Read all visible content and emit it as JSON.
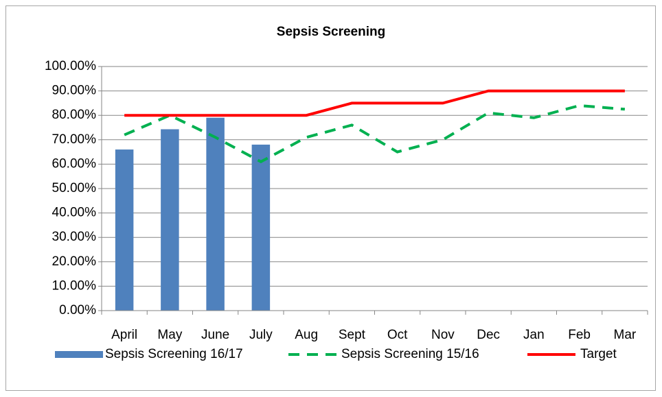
{
  "chart_data": {
    "type": "bar",
    "title": "Sepsis Screening",
    "categories": [
      "April",
      "May",
      "June",
      "July",
      "Aug",
      "Sept",
      "Oct",
      "Nov",
      "Dec",
      "Jan",
      "Feb",
      "Mar"
    ],
    "series": [
      {
        "name": "Sepsis Screening 16/17",
        "type": "bar",
        "color": "#4f81bd",
        "values": [
          66,
          74.3,
          79,
          68,
          null,
          null,
          null,
          null,
          null,
          null,
          null,
          null
        ]
      },
      {
        "name": "Sepsis Screening 15/16",
        "type": "line",
        "style": "dashed",
        "color": "#00b050",
        "values": [
          72,
          80,
          71,
          61,
          71,
          76,
          65,
          70,
          81,
          79,
          84,
          82.5
        ]
      },
      {
        "name": "Target",
        "type": "line",
        "style": "solid",
        "color": "#ff0000",
        "values": [
          80,
          80,
          80,
          80,
          80,
          85,
          85,
          85,
          90,
          90,
          90,
          90
        ]
      }
    ],
    "ylim": [
      0,
      100
    ],
    "yticks": [
      {
        "value": 0,
        "label": "0.00%"
      },
      {
        "value": 10,
        "label": "10.00%"
      },
      {
        "value": 20,
        "label": "20.00%"
      },
      {
        "value": 30,
        "label": "30.00%"
      },
      {
        "value": 40,
        "label": "40.00%"
      },
      {
        "value": 50,
        "label": "50.00%"
      },
      {
        "value": 60,
        "label": "60.00%"
      },
      {
        "value": 70,
        "label": "70.00%"
      },
      {
        "value": 80,
        "label": "80.00%"
      },
      {
        "value": 90,
        "label": "90.00%"
      },
      {
        "value": 100,
        "label": "100.00%"
      }
    ],
    "grid": true,
    "legend": "bottom"
  }
}
